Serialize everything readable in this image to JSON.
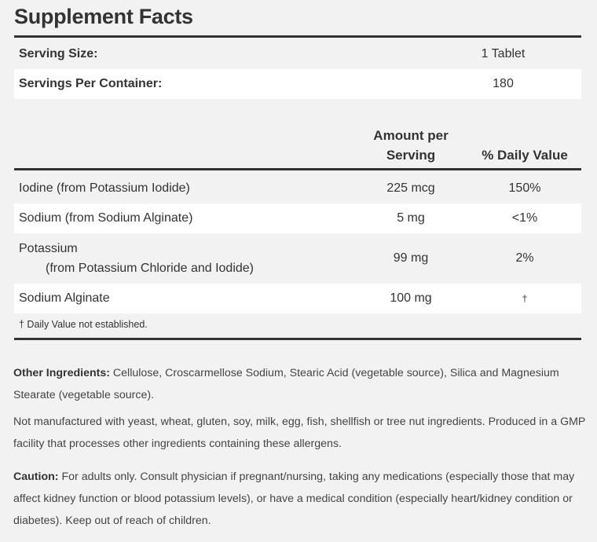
{
  "title": "Supplement Facts",
  "serving": {
    "size_label": "Serving Size:",
    "size_value": "1 Tablet",
    "per_container_label": "Servings Per Container:",
    "per_container_value": "180"
  },
  "table": {
    "headers": {
      "amount_line1": "Amount per",
      "amount_line2": "Serving",
      "daily_value": "% Daily Value"
    },
    "rows": [
      {
        "name": "Iodine (from Potassium Iodide)",
        "sub": "",
        "amount": "225 mcg",
        "dv": "150%"
      },
      {
        "name": "Sodium (from Sodium Alginate)",
        "sub": "",
        "amount": "5 mg",
        "dv": "<1%"
      },
      {
        "name": "Potassium",
        "sub": "(from Potassium Chloride and Iodide)",
        "amount": "99 mg",
        "dv": "2%"
      },
      {
        "name": "Sodium Alginate",
        "sub": "",
        "amount": "100 mg",
        "dv": "†"
      }
    ],
    "footnote": "† Daily Value not established."
  },
  "other_ingredients": {
    "label": "Other Ingredients:",
    "text": " Cellulose, Croscarmellose Sodium, Stearic Acid (vegetable source), Silica and Magnesium Stearate (vegetable source)."
  },
  "allergen_note": "Not manufactured with yeast, wheat, gluten, soy, milk, egg, fish, shellfish or tree nut ingredients. Produced in a GMP facility that processes other ingredients containing these allergens.",
  "caution": {
    "label": "Caution:",
    "text": " For adults only. Consult physician if pregnant/nursing, taking any medications (especially those that may affect kidney function or blood potassium levels), or have a medical condition (especially heart/kidney condition or diabetes). Keep out of reach of children."
  }
}
